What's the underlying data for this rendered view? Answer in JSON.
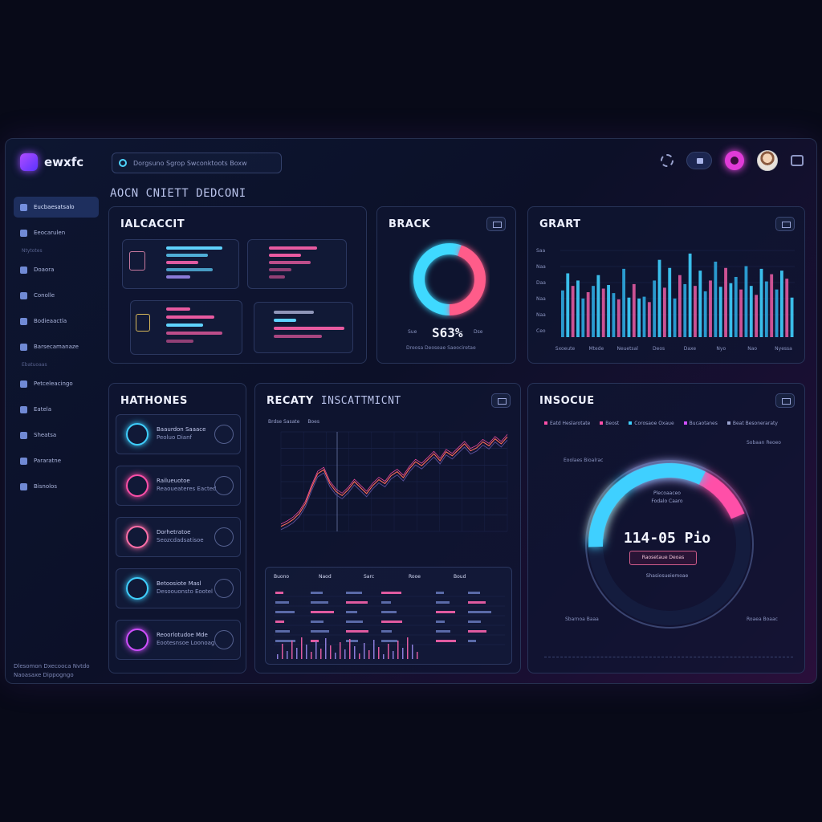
{
  "app": {
    "name": "ewxfc"
  },
  "search": {
    "placeholder": "Dorgsuno Sgrop Swconktoots Boxw"
  },
  "page_title": "AOCN CNIETT DEDCONI",
  "sidebar": {
    "items": [
      {
        "label": "Eucbaesatsalo",
        "icon": "dashboard-icon",
        "active": true
      },
      {
        "label": "Eeocarulen",
        "icon": "chart-icon"
      },
      {
        "sep": "Ntytotes"
      },
      {
        "label": "Doaora",
        "icon": "home-icon"
      },
      {
        "label": "Conolle",
        "icon": "pen-icon"
      },
      {
        "label": "Bodieaactla",
        "icon": "folder-icon"
      },
      {
        "label": "Barsecamanaze",
        "icon": "cloud-icon"
      },
      {
        "sep": "Ebatuoaas"
      },
      {
        "label": "Petceleacingo",
        "icon": "user-icon"
      },
      {
        "label": "Eatela",
        "icon": "bulb-icon"
      },
      {
        "label": "Sheatsa",
        "icon": "bag-icon"
      },
      {
        "label": "Pararatne",
        "icon": "car-icon"
      },
      {
        "label": "Bisnolos",
        "icon": "grid-icon"
      }
    ],
    "footer": [
      "Dlesomon Dxecooca Nvtdo",
      "Naoasaxe Dippogngo"
    ]
  },
  "cards": {
    "alcacit": {
      "title": "IALCACCIT"
    },
    "brack": {
      "title": "BRACK",
      "value": "S63%",
      "left_label": "Sue",
      "right_label": "Dse",
      "foot": "Dreosa Deoseae Saeociretae"
    },
    "grart": {
      "title": "GRART",
      "y_ticks": [
        "Saa",
        "Naa",
        "Daa",
        "Naa",
        "Naa",
        "Ceo"
      ],
      "x_ticks": [
        "Sxoeute",
        "Mtede",
        "Neuetsal",
        "Deos",
        "Daxe",
        "Nyo",
        "Nao",
        "Nyessa"
      ]
    },
    "hathones": {
      "title": "HATHONES",
      "items": [
        {
          "line1": "Baaurdon Saaace",
          "line2": "Peoluo Dianf"
        },
        {
          "line1": "Railueuotoe",
          "line2": "Reaoueateres Eacted"
        },
        {
          "line1": "Dorhetratoe",
          "line2": "Seozcdadsatisoe"
        },
        {
          "line1": "Betoosiote Masl",
          "line2": "Desoouonsto Eootel"
        },
        {
          "line1": "Reoorlotudoe Mde",
          "line2": "Eootesnsoe Loonoag"
        }
      ]
    },
    "recaty": {
      "title": "RECATY",
      "subtitle": "INSCATTMICNT",
      "legend": [
        "Brdse Sasate",
        "Boes"
      ],
      "table_headers": [
        "Buono",
        "Naod",
        "Sarc",
        "Rooe",
        "Boud"
      ]
    },
    "insocue": {
      "title": "INSOCUE",
      "value": "114-05 Pio",
      "legend": [
        "Eatd Heslarotate",
        "Beost",
        "Corosaoe Oxaue",
        "Bucaotanes",
        "Beat Besoneraraty"
      ],
      "center_lines": [
        "Plecoaaceo",
        "Fodalo Caaro"
      ],
      "button": "Raosetaue Deoas",
      "below_button": "Shasiosueiemoae",
      "callouts": [
        "Eoolaes Bioalrac",
        "Sobaan Reoeo",
        "Sbarnoa Baaa",
        "Roaea Boaac"
      ]
    }
  },
  "colors": {
    "accent_cyan": "#3fd0ff",
    "accent_pink": "#ff4fa8",
    "accent_purple": "#b04cff",
    "accent_orange": "#ff8a5c"
  },
  "chart_data": [
    {
      "type": "bar",
      "title": "GRART",
      "series": [
        {
          "name": "",
          "values": [
            52,
            71,
            57,
            63,
            43,
            50,
            57,
            69,
            54,
            58,
            49,
            42,
            76,
            44,
            59,
            43,
            45,
            39,
            63,
            86,
            55,
            77,
            43,
            69,
            59,
            93,
            57,
            74,
            51,
            63,
            84,
            56,
            77,
            60,
            67,
            53,
            79,
            57,
            47,
            76,
            62,
            70,
            53,
            74,
            65,
            44
          ]
        }
      ]
    },
    {
      "type": "line",
      "title": "RECATY INSCATTMICNT",
      "series": [
        {
          "name": "",
          "values": [
            5,
            8,
            12,
            18,
            28,
            44,
            58,
            62,
            48,
            40,
            36,
            42,
            50,
            44,
            38,
            46,
            52,
            48,
            56,
            60,
            54,
            63,
            70,
            66,
            72,
            78,
            71,
            80,
            76,
            82,
            88,
            81,
            84,
            90,
            86,
            93,
            88,
            95
          ]
        }
      ]
    }
  ]
}
